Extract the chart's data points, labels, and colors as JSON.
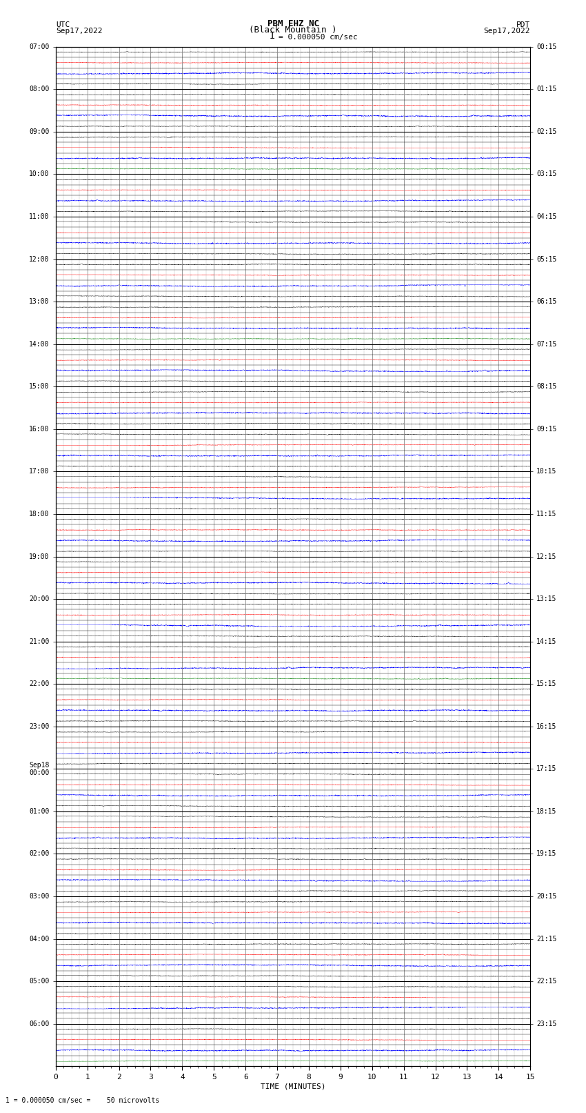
{
  "title_line1": "PBM EHZ NC",
  "title_line2": "(Black Mountain )",
  "scale_label": "I = 0.000050 cm/sec",
  "left_header_line1": "UTC",
  "left_header_line2": "Sep17,2022",
  "right_header_line1": "PDT",
  "right_header_line2": "Sep17,2022",
  "bottom_note": "1 = 0.000050 cm/sec =    50 microvolts",
  "xlabel": "TIME (MINUTES)",
  "xlim": [
    0,
    15
  ],
  "background_color": "#ffffff",
  "trace_color_black": "#000000",
  "trace_color_red": "#ff0000",
  "trace_color_blue": "#0000ff",
  "trace_color_green": "#008000",
  "grid_color_major": "#888888",
  "grid_color_minor": "#aaaaaa",
  "fig_width": 8.5,
  "fig_height": 16.13,
  "num_rows": 96,
  "left_labels_utc": {
    "0": "07:00",
    "4": "08:00",
    "8": "09:00",
    "12": "10:00",
    "16": "11:00",
    "20": "12:00",
    "24": "13:00",
    "28": "14:00",
    "32": "15:00",
    "36": "16:00",
    "40": "17:00",
    "44": "18:00",
    "48": "19:00",
    "52": "20:00",
    "56": "21:00",
    "60": "22:00",
    "64": "23:00",
    "68": "Sep18\n00:00",
    "72": "01:00",
    "76": "02:00",
    "80": "03:00",
    "84": "04:00",
    "88": "05:00",
    "92": "06:00"
  },
  "right_labels_pdt": {
    "0": "00:15",
    "4": "01:15",
    "8": "02:15",
    "12": "03:15",
    "16": "04:15",
    "20": "05:15",
    "24": "06:15",
    "28": "07:15",
    "32": "08:15",
    "36": "09:15",
    "40": "10:15",
    "44": "11:15",
    "48": "12:15",
    "52": "13:15",
    "56": "14:15",
    "60": "15:15",
    "64": "16:15",
    "68": "17:15",
    "72": "18:15",
    "76": "19:15",
    "80": "20:15",
    "84": "21:15",
    "88": "22:15",
    "92": "23:15"
  },
  "row_colors": [
    "black",
    "red",
    "blue",
    "black",
    "black",
    "red",
    "blue",
    "black",
    "black",
    "red",
    "blue",
    "green",
    "black",
    "red",
    "blue",
    "black",
    "black",
    "red",
    "blue",
    "black",
    "black",
    "red",
    "blue",
    "black",
    "black",
    "red",
    "blue",
    "green",
    "black",
    "red",
    "blue",
    "black",
    "black",
    "red",
    "blue",
    "black",
    "black",
    "red",
    "blue",
    "black",
    "black",
    "red",
    "blue",
    "black",
    "black",
    "red",
    "blue",
    "black",
    "black",
    "red",
    "blue",
    "black",
    "black",
    "red",
    "blue",
    "black",
    "black",
    "red",
    "blue",
    "green",
    "black",
    "red",
    "blue",
    "black",
    "black",
    "red",
    "blue",
    "black",
    "black",
    "red",
    "blue",
    "black",
    "black",
    "red",
    "blue",
    "black",
    "black",
    "red",
    "blue",
    "black",
    "black",
    "red",
    "blue",
    "black",
    "black",
    "red",
    "blue",
    "black",
    "black",
    "red",
    "blue",
    "black",
    "black",
    "red",
    "blue",
    "green"
  ],
  "row_amplitudes": [
    0.05,
    0.05,
    0.1,
    0.05,
    0.05,
    0.05,
    0.1,
    0.05,
    0.05,
    0.05,
    0.1,
    0.05,
    0.05,
    0.05,
    0.1,
    0.05,
    0.05,
    0.05,
    0.1,
    0.05,
    0.05,
    0.05,
    0.1,
    0.05,
    0.05,
    0.05,
    0.1,
    0.05,
    0.05,
    0.05,
    0.1,
    0.05,
    0.05,
    0.05,
    0.1,
    0.05,
    0.05,
    0.05,
    0.1,
    0.05,
    0.05,
    0.05,
    0.1,
    0.05,
    0.05,
    0.05,
    0.1,
    0.05,
    0.05,
    0.05,
    0.1,
    0.05,
    0.05,
    0.05,
    0.1,
    0.05,
    0.05,
    0.05,
    0.1,
    0.05,
    0.05,
    0.05,
    0.1,
    0.05,
    0.05,
    0.05,
    0.1,
    0.05,
    0.05,
    0.05,
    0.1,
    0.05,
    0.05,
    0.05,
    0.1,
    0.05,
    0.05,
    0.05,
    0.1,
    0.05,
    0.05,
    0.05,
    0.1,
    0.05,
    0.05,
    0.05,
    0.1,
    0.05,
    0.05,
    0.05,
    0.1,
    0.05,
    0.05,
    0.05,
    0.1,
    0.05
  ]
}
